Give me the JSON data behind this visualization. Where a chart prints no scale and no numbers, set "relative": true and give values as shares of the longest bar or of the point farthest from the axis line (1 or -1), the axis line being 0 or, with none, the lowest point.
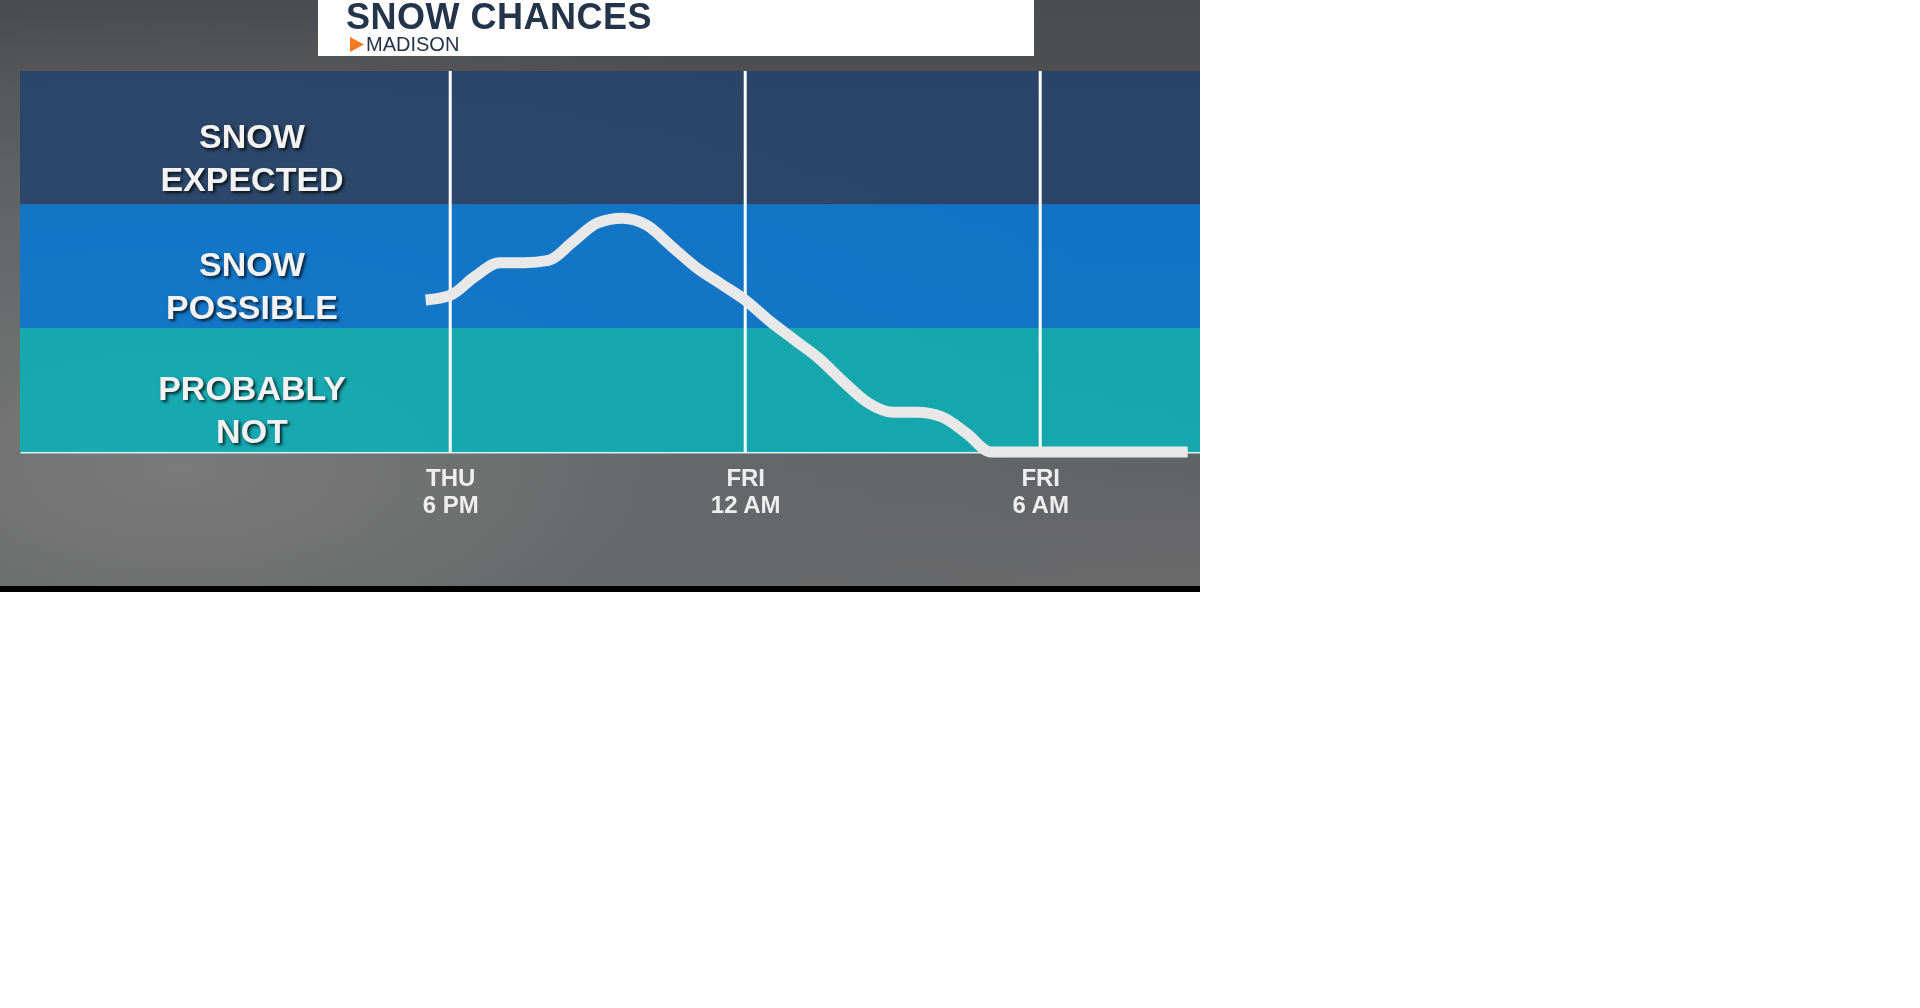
{
  "chart_data": {
    "type": "line",
    "title": "SNOW CHANCES",
    "subtitle": "MADISON",
    "relative": true,
    "categories": [
      null,
      null,
      null,
      null,
      null,
      null,
      null,
      null,
      null,
      null,
      null,
      null,
      null,
      null,
      null,
      null,
      null,
      "THU 6 PM",
      null,
      null,
      null,
      null,
      null,
      null,
      null,
      null,
      null,
      null,
      null,
      "FRI 12 AM",
      null,
      null,
      null,
      null,
      null,
      null,
      null,
      null,
      null,
      null,
      null,
      "FRI 6 AM",
      null,
      null,
      null,
      null,
      null,
      null
    ],
    "series": [
      {
        "color": "#e8e8e8",
        "values": [
          null,
          null,
          null,
          null,
          null,
          null,
          null,
          null,
          null,
          null,
          null,
          null,
          null,
          null,
          null,
          null,
          0.65,
          0.67,
          0.75,
          0.81,
          0.81,
          0.82,
          0.9,
          0.98,
          1,
          0.97,
          0.88,
          0.79,
          0.72,
          0.65,
          0.56,
          0.48,
          0.4,
          0.3,
          0.21,
          0.17,
          0.17,
          0.15,
          0.08,
          0,
          0,
          0,
          0,
          0,
          0,
          0,
          0,
          0
        ]
      }
    ],
    "grid": "x",
    "tick_labels": "x",
    "bands": [
      {
        "axis": "y",
        "from": 1.06,
        "to": 1.63,
        "label": "SNOW EXPECTED",
        "color": "#24436a"
      },
      {
        "axis": "y",
        "from": 0.53,
        "to": 1.06,
        "label": "SNOW POSSIBLE",
        "color": "#0878d4"
      },
      {
        "axis": "y",
        "from": 0,
        "to": 0.53,
        "label": "PROBABLY NOT",
        "color": "#0aafb8"
      }
    ]
  }
}
